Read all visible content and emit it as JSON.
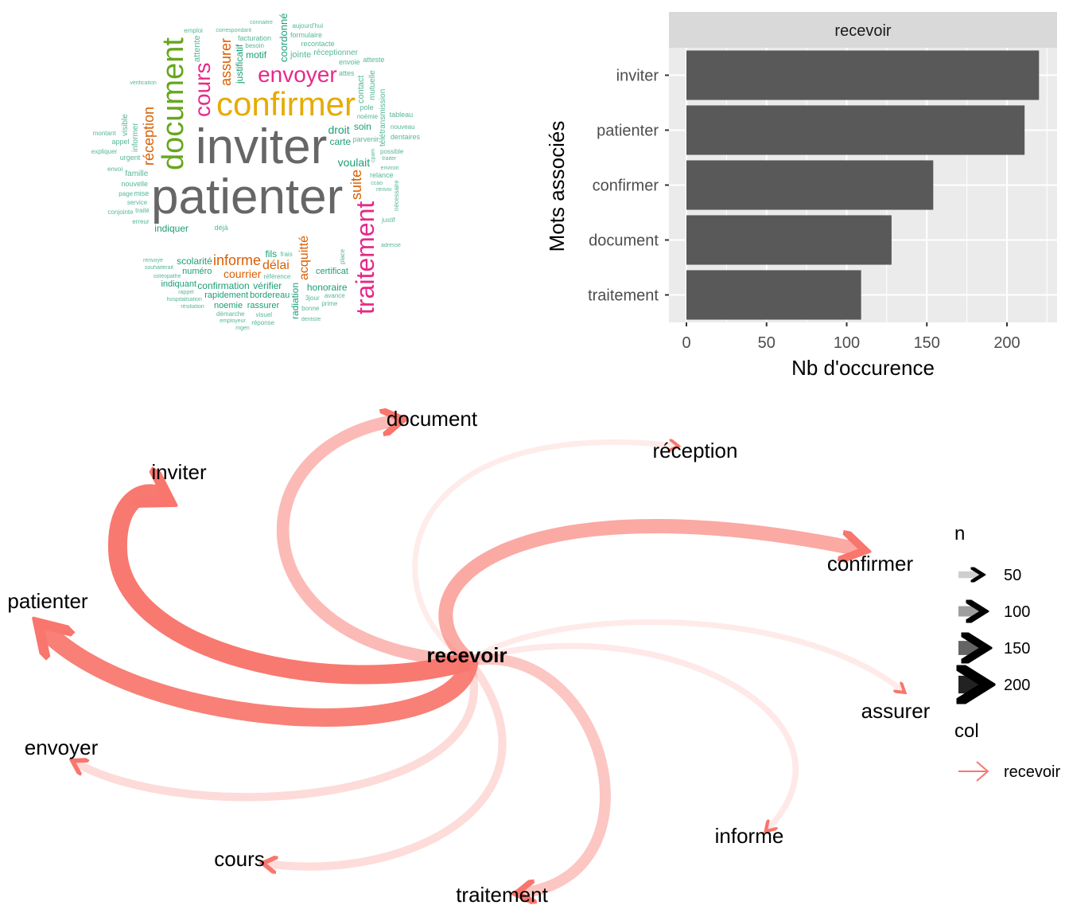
{
  "wordcloud": {
    "words": [
      {
        "text": "patienter",
        "tier": 6,
        "color": "#666666"
      },
      {
        "text": "inviter",
        "tier": 6,
        "color": "#666666"
      },
      {
        "text": "confirmer",
        "tier": 5,
        "color": "#E6AB02"
      },
      {
        "text": "document",
        "tier": 5,
        "color": "#66A61E"
      },
      {
        "text": "traitement",
        "tier": 5,
        "color": "#E7298A"
      },
      {
        "text": "envoyer",
        "tier": 4,
        "color": "#E7298A"
      },
      {
        "text": "cours",
        "tier": 4,
        "color": "#E7298A"
      },
      {
        "text": "assurer",
        "tier": 3,
        "color": "#D95F02"
      },
      {
        "text": "réception",
        "tier": 3,
        "color": "#D95F02"
      },
      {
        "text": "informe",
        "tier": 3,
        "color": "#D95F02"
      },
      {
        "text": "courrier",
        "tier": 3,
        "color": "#D95F02"
      },
      {
        "text": "délai",
        "tier": 3,
        "color": "#D95F02"
      },
      {
        "text": "acquitté",
        "tier": 3,
        "color": "#D95F02"
      },
      {
        "text": "suite",
        "tier": 3,
        "color": "#D95F02"
      },
      {
        "text": "justificatif",
        "tier": 2,
        "color": "#1B9E77"
      },
      {
        "text": "droit",
        "tier": 2,
        "color": "#1B9E77"
      },
      {
        "text": "carte",
        "tier": 2,
        "color": "#1B9E77"
      },
      {
        "text": "soin",
        "tier": 2,
        "color": "#1B9E77"
      },
      {
        "text": "motif",
        "tier": 2,
        "color": "#1B9E77"
      },
      {
        "text": "coordonné",
        "tier": 2,
        "color": "#1B9E77"
      },
      {
        "text": "voulait",
        "tier": 2,
        "color": "#1B9E77"
      },
      {
        "text": "indiquer",
        "tier": 2,
        "color": "#1B9E77"
      },
      {
        "text": "honoraire",
        "tier": 2,
        "color": "#1B9E77"
      },
      {
        "text": "confirmation",
        "tier": 2,
        "color": "#1B9E77"
      },
      {
        "text": "vérifier",
        "tier": 2,
        "color": "#1B9E77"
      },
      {
        "text": "scolarité",
        "tier": 2,
        "color": "#1B9E77"
      },
      {
        "text": "numéro",
        "tier": 2,
        "color": "#1B9E77"
      },
      {
        "text": "indiquant",
        "tier": 2,
        "color": "#1B9E77"
      },
      {
        "text": "certificat",
        "tier": 2,
        "color": "#1B9E77"
      },
      {
        "text": "bordereau",
        "tier": 2,
        "color": "#1B9E77"
      },
      {
        "text": "rassurer",
        "tier": 2,
        "color": "#1B9E77"
      },
      {
        "text": "rapidement",
        "tier": 2,
        "color": "#1B9E77"
      },
      {
        "text": "noemie",
        "tier": 2,
        "color": "#1B9E77"
      },
      {
        "text": "radiation",
        "tier": 2,
        "color": "#1B9E77"
      },
      {
        "text": "fils",
        "tier": 2,
        "color": "#1B9E77"
      },
      {
        "text": "jointe",
        "tier": 1,
        "color": "#1B9E77"
      },
      {
        "text": "réceptionner",
        "tier": 1,
        "color": "#1B9E77"
      },
      {
        "text": "recontacte",
        "tier": 1,
        "color": "#1B9E77"
      },
      {
        "text": "formulaire",
        "tier": 1,
        "color": "#1B9E77"
      },
      {
        "text": "facturation",
        "tier": 1,
        "color": "#1B9E77"
      },
      {
        "text": "contact",
        "tier": 1,
        "color": "#1B9E77"
      },
      {
        "text": "attente",
        "tier": 1,
        "color": "#1B9E77"
      },
      {
        "text": "mutuelle",
        "tier": 1,
        "color": "#1B9E77"
      },
      {
        "text": "famille",
        "tier": 1,
        "color": "#1B9E77"
      },
      {
        "text": "urgent",
        "tier": 1,
        "color": "#1B9E77"
      },
      {
        "text": "nouvelle",
        "tier": 1,
        "color": "#1B9E77"
      },
      {
        "text": "mise",
        "tier": 1,
        "color": "#1B9E77"
      },
      {
        "text": "informer",
        "tier": 1,
        "color": "#1B9E77"
      },
      {
        "text": "visible",
        "tier": 1,
        "color": "#1B9E77"
      },
      {
        "text": "déjà",
        "tier": 1,
        "color": "#1B9E77"
      },
      {
        "text": "relance",
        "tier": 1,
        "color": "#1B9E77"
      },
      {
        "text": "télétransmission",
        "tier": 1,
        "color": "#1B9E77"
      },
      {
        "text": "parvenir",
        "tier": 1,
        "color": "#1B9E77"
      },
      {
        "text": "tableau",
        "tier": 1,
        "color": "#1B9E77"
      },
      {
        "text": "noémie",
        "tier": 1,
        "color": "#1B9E77"
      },
      {
        "text": "nouveau",
        "tier": 1,
        "color": "#1B9E77"
      },
      {
        "text": "dentaires",
        "tier": 1,
        "color": "#1B9E77"
      },
      {
        "text": "possible",
        "tier": 1,
        "color": "#1B9E77"
      },
      {
        "text": "envoie",
        "tier": 1,
        "color": "#1B9E77"
      },
      {
        "text": "atteste",
        "tier": 1,
        "color": "#1B9E77"
      },
      {
        "text": "attes",
        "tier": 1,
        "color": "#1B9E77"
      },
      {
        "text": "pole",
        "tier": 1,
        "color": "#1B9E77"
      },
      {
        "text": "aujourd'hui",
        "tier": 1,
        "color": "#1B9E77"
      },
      {
        "text": "correspondant",
        "tier": 1,
        "color": "#1B9E77"
      },
      {
        "text": "connaitre",
        "tier": 1,
        "color": "#1B9E77"
      },
      {
        "text": "besoin",
        "tier": 1,
        "color": "#1B9E77"
      },
      {
        "text": "emploi",
        "tier": 1,
        "color": "#1B9E77"
      },
      {
        "text": "vérification",
        "tier": 1,
        "color": "#1B9E77"
      },
      {
        "text": "appel",
        "tier": 1,
        "color": "#1B9E77"
      },
      {
        "text": "montant",
        "tier": 1,
        "color": "#1B9E77"
      },
      {
        "text": "expliquer",
        "tier": 1,
        "color": "#1B9E77"
      },
      {
        "text": "envoi",
        "tier": 1,
        "color": "#1B9E77"
      },
      {
        "text": "service",
        "tier": 1,
        "color": "#1B9E77"
      },
      {
        "text": "page",
        "tier": 1,
        "color": "#1B9E77"
      },
      {
        "text": "traité",
        "tier": 1,
        "color": "#1B9E77"
      },
      {
        "text": "erreur",
        "tier": 1,
        "color": "#1B9E77"
      },
      {
        "text": "conjointe",
        "tier": 1,
        "color": "#1B9E77"
      },
      {
        "text": "renvoyé",
        "tier": 1,
        "color": "#1B9E77"
      },
      {
        "text": "souhaiterait",
        "tier": 1,
        "color": "#1B9E77"
      },
      {
        "text": "ostéopathe",
        "tier": 1,
        "color": "#1B9E77"
      },
      {
        "text": "rappel",
        "tier": 1,
        "color": "#1B9E77"
      },
      {
        "text": "hospitalisation",
        "tier": 1,
        "color": "#1B9E77"
      },
      {
        "text": "résiliation",
        "tier": 1,
        "color": "#1B9E77"
      },
      {
        "text": "démarche",
        "tier": 1,
        "color": "#1B9E77"
      },
      {
        "text": "visuel",
        "tier": 1,
        "color": "#1B9E77"
      },
      {
        "text": "réponse",
        "tier": 1,
        "color": "#1B9E77"
      },
      {
        "text": "bonne",
        "tier": 1,
        "color": "#1B9E77"
      },
      {
        "text": "employeur",
        "tier": 1,
        "color": "#1B9E77"
      },
      {
        "text": "mgen",
        "tier": 1,
        "color": "#1B9E77"
      },
      {
        "text": "dentiste",
        "tier": 1,
        "color": "#1B9E77"
      },
      {
        "text": "avance",
        "tier": 1,
        "color": "#1B9E77"
      },
      {
        "text": "prime",
        "tier": 1,
        "color": "#1B9E77"
      },
      {
        "text": "3jour",
        "tier": 1,
        "color": "#1B9E77"
      },
      {
        "text": "place",
        "tier": 1,
        "color": "#1B9E77"
      },
      {
        "text": "référence",
        "tier": 1,
        "color": "#1B9E77"
      },
      {
        "text": "frais",
        "tier": 1,
        "color": "#1B9E77"
      },
      {
        "text": "justif",
        "tier": 1,
        "color": "#1B9E77"
      },
      {
        "text": "adresse",
        "tier": 1,
        "color": "#1B9E77"
      },
      {
        "text": "ccao",
        "tier": 1,
        "color": "#1B9E77"
      },
      {
        "text": "renvoi",
        "tier": 1,
        "color": "#1B9E77"
      },
      {
        "text": "environ",
        "tier": 1,
        "color": "#1B9E77"
      },
      {
        "text": "traiter",
        "tier": 1,
        "color": "#1B9E77"
      },
      {
        "text": "cpam",
        "tier": 1,
        "color": "#1B9E77"
      },
      {
        "text": "nécessaire",
        "tier": 1,
        "color": "#1B9E77"
      }
    ]
  },
  "chart_data": [
    {
      "type": "wordcloud",
      "note_words_source": "wordcloud.words"
    },
    {
      "type": "bar",
      "orientation": "horizontal",
      "facet": "recevoir",
      "categories": [
        "inviter",
        "patienter",
        "confirmer",
        "document",
        "traitement"
      ],
      "values": [
        220,
        211,
        154,
        128,
        109
      ],
      "xlabel": "Nb d'occurence",
      "ylabel": "Mots associés",
      "xticks": [
        0,
        50,
        100,
        150,
        200
      ],
      "xlim": [
        -7,
        231
      ],
      "grid": true,
      "bar_color": "#595959",
      "panel_color": "#EBEBEB",
      "strip_color": "#D9D9D9"
    },
    {
      "type": "network",
      "center": "recevoir",
      "edges": [
        {
          "to": "inviter",
          "n": 220
        },
        {
          "to": "patienter",
          "n": 211
        },
        {
          "to": "confirmer",
          "n": 154
        },
        {
          "to": "document",
          "n": 128
        },
        {
          "to": "traitement",
          "n": 109
        },
        {
          "to": "envoyer",
          "n": 70
        },
        {
          "to": "cours",
          "n": 68
        },
        {
          "to": "informe",
          "n": 40
        },
        {
          "to": "assurer",
          "n": 35
        },
        {
          "to": "réception",
          "n": 32
        }
      ],
      "edge_color": "#F8766D",
      "legend": {
        "n_title": "n",
        "n_values": [
          50,
          100,
          150,
          200
        ],
        "col_title": "col",
        "col_values": [
          "recevoir"
        ]
      }
    }
  ]
}
